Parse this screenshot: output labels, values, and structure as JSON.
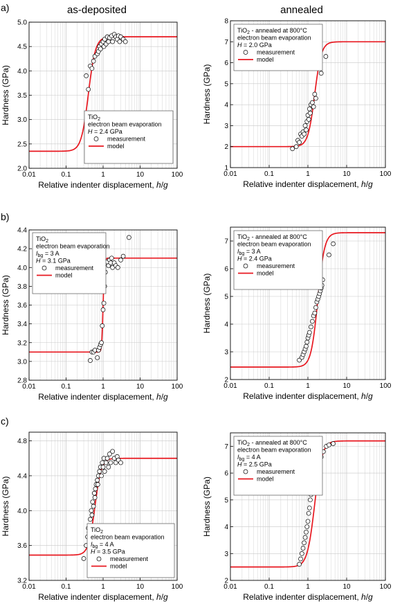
{
  "column_titles": [
    "as-deposited",
    "annealed"
  ],
  "row_labels": [
    "a)",
    "b)",
    "c)"
  ],
  "legend_labels": {
    "measurement": "measurement",
    "model": "model"
  },
  "colors": {
    "model": "#e8171f",
    "measurement": "#000000",
    "grid": "#c8c8c8"
  },
  "chart_data": [
    {
      "id": "a-as-deposited",
      "type": "scatter",
      "xlabel": "Relative indenter displacement, h/g",
      "ylabel": "Hardness (GPa)",
      "xscale": "log",
      "xlim": [
        0.01,
        100
      ],
      "ylim": [
        2.0,
        5.0
      ],
      "xticks": [
        "0.01",
        "0.1",
        "1",
        "10",
        "100"
      ],
      "yticks": [
        "2.0",
        "2.5",
        "3.0",
        "3.5",
        "4.0",
        "4.5",
        "5.0"
      ],
      "grid": true,
      "legend_position": "bottom-right",
      "legend_text": [
        "TiO2",
        "electron beam evaporation",
        "H = 2.4 GPa"
      ],
      "model": {
        "low": 2.35,
        "high": 4.7,
        "x0": 0.4,
        "k": 4.5
      },
      "series": [
        {
          "name": "measurement",
          "x": [
            0.35,
            0.4,
            0.45,
            0.5,
            0.55,
            0.6,
            0.7,
            0.75,
            0.8,
            0.85,
            0.9,
            1.0,
            1.05,
            1.1,
            1.2,
            1.3,
            1.4,
            1.5,
            1.7,
            1.8,
            2.0,
            2.2,
            2.4,
            2.6,
            2.8,
            3.0,
            3.5,
            4.0
          ],
          "y": [
            3.9,
            3.62,
            4.1,
            4.05,
            4.2,
            4.3,
            4.35,
            4.4,
            4.5,
            4.45,
            4.55,
            4.6,
            4.5,
            4.65,
            4.55,
            4.7,
            4.6,
            4.68,
            4.72,
            4.6,
            4.75,
            4.7,
            4.65,
            4.72,
            4.6,
            4.7,
            4.65,
            4.6
          ]
        }
      ]
    },
    {
      "id": "a-annealed",
      "type": "scatter",
      "xlabel": "Relative indenter displacement, h/g",
      "ylabel": "Hardness (GPa)",
      "xscale": "log",
      "xlim": [
        0.01,
        100
      ],
      "ylim": [
        1,
        8
      ],
      "xticks": [
        "0.01",
        "0.1",
        "1",
        "10",
        "100"
      ],
      "yticks": [
        "1",
        "2",
        "3",
        "4",
        "5",
        "6",
        "7",
        "8"
      ],
      "grid": true,
      "legend_position": "top-left",
      "legend_text": [
        "TiO2 - annealed at 800°C",
        "electron beam evaporation",
        "H = 2.0 GPa"
      ],
      "model": {
        "low": 2.0,
        "high": 7.0,
        "x0": 1.5,
        "k": 5.0
      },
      "series": [
        {
          "name": "measurement",
          "x": [
            0.4,
            0.5,
            0.55,
            0.6,
            0.65,
            0.7,
            0.75,
            0.8,
            0.85,
            0.9,
            0.95,
            1.0,
            1.05,
            1.1,
            1.15,
            1.2,
            1.3,
            1.4,
            1.5,
            1.6,
            2.2,
            2.9
          ],
          "y": [
            1.9,
            2.0,
            2.3,
            2.2,
            2.6,
            2.5,
            2.7,
            2.6,
            3.0,
            2.8,
            3.2,
            3.5,
            3.3,
            3.8,
            3.6,
            4.0,
            4.1,
            3.9,
            4.5,
            4.3,
            5.5,
            6.3
          ]
        }
      ]
    },
    {
      "id": "b-as-deposited",
      "type": "scatter",
      "xlabel": "Relative indenter displacement, h/g",
      "ylabel": "Hardness (GPa)",
      "xscale": "log",
      "xlim": [
        0.01,
        100
      ],
      "ylim": [
        2.8,
        4.4
      ],
      "xticks": [
        "0.01",
        "0.1",
        "1",
        "10",
        "100"
      ],
      "yticks": [
        "2.8",
        "3.0",
        "3.2",
        "3.4",
        "3.6",
        "3.8",
        "4.0",
        "4.2",
        "4.4"
      ],
      "grid": true,
      "legend_position": "top-left",
      "legend_text": [
        "TiO2",
        "electron beam evaporation",
        "Ibg = 3 A",
        "H = 3.1 GPa"
      ],
      "model": {
        "low": 3.1,
        "high": 4.1,
        "x0": 1.0,
        "k": 25
      },
      "series": [
        {
          "name": "measurement",
          "x": [
            0.45,
            0.5,
            0.55,
            0.6,
            0.7,
            0.75,
            0.8,
            0.85,
            0.9,
            0.95,
            1.0,
            1.05,
            1.1,
            1.15,
            1.2,
            1.3,
            1.4,
            1.5,
            1.6,
            1.7,
            1.8,
            2.0,
            2.2,
            2.5,
            3.0,
            3.5,
            5.0
          ],
          "y": [
            3.01,
            3.1,
            3.1,
            3.12,
            3.04,
            3.12,
            3.15,
            3.18,
            3.2,
            3.38,
            3.55,
            3.62,
            3.8,
            3.95,
            4.05,
            4.06,
            4.02,
            4.08,
            4.05,
            4.1,
            4.0,
            4.05,
            4.02,
            4.0,
            4.08,
            4.12,
            4.32
          ]
        }
      ]
    },
    {
      "id": "b-annealed",
      "type": "scatter",
      "xlabel": "Relative indenter displacement, h/g",
      "ylabel": "Hardness (GPa)",
      "xscale": "log",
      "xlim": [
        0.01,
        100
      ],
      "ylim": [
        2,
        7.5
      ],
      "xticks": [
        "0.01",
        "0.1",
        "1",
        "10",
        "100"
      ],
      "yticks": [
        "2",
        "3",
        "4",
        "5",
        "6",
        "7"
      ],
      "grid": true,
      "legend_position": "top-left",
      "legend_text": [
        "TiO2 - annealed at 800°C",
        "electron beam evaporation",
        "Ibg = 3 A",
        "H = 2.4 GPa"
      ],
      "model": {
        "low": 2.45,
        "high": 7.3,
        "x0": 1.8,
        "k": 5.0
      },
      "series": [
        {
          "name": "measurement",
          "x": [
            0.6,
            0.7,
            0.75,
            0.8,
            0.85,
            0.9,
            0.95,
            1.0,
            1.05,
            1.1,
            1.2,
            1.3,
            1.4,
            1.5,
            1.6,
            1.7,
            1.8,
            1.9,
            2.0,
            2.1,
            2.2,
            2.3,
            2.4,
            3.5,
            4.5
          ],
          "y": [
            2.7,
            2.8,
            2.9,
            3.0,
            3.1,
            3.2,
            3.35,
            3.5,
            3.6,
            3.7,
            3.9,
            4.1,
            4.3,
            4.4,
            4.6,
            4.8,
            4.9,
            5.0,
            5.1,
            5.2,
            5.3,
            5.4,
            5.6,
            6.5,
            6.9
          ]
        }
      ]
    },
    {
      "id": "c-as-deposited",
      "type": "scatter",
      "xlabel": "Relative indenter displacement, h/g",
      "ylabel": "Hardness (GPa)",
      "xscale": "log",
      "xlim": [
        0.01,
        100
      ],
      "ylim": [
        3.2,
        4.9
      ],
      "xticks": [
        "0.01",
        "0.1",
        "1",
        "10",
        "100"
      ],
      "yticks": [
        "3.2",
        "3.6",
        "4.0",
        "4.4",
        "4.8"
      ],
      "grid": true,
      "legend_position": "bottom-right",
      "legend_text": [
        "TiO2",
        "electron beam evaporation",
        "Ibg = 4 A",
        "H = 3.5 GPa"
      ],
      "model": {
        "low": 3.49,
        "high": 4.6,
        "x0": 0.6,
        "k": 5.0
      },
      "series": [
        {
          "name": "measurement",
          "x": [
            0.3,
            0.35,
            0.38,
            0.4,
            0.42,
            0.45,
            0.48,
            0.5,
            0.52,
            0.55,
            0.58,
            0.6,
            0.62,
            0.65,
            0.7,
            0.72,
            0.75,
            0.8,
            0.85,
            0.9,
            0.95,
            1.0,
            1.05,
            1.1,
            1.2,
            1.3,
            1.4,
            1.5,
            1.6,
            1.8,
            2.0,
            2.2,
            2.4,
            2.6,
            3.0
          ],
          "y": [
            3.45,
            3.6,
            3.7,
            3.8,
            3.75,
            3.9,
            4.0,
            3.95,
            4.1,
            4.05,
            4.2,
            4.15,
            4.25,
            4.3,
            4.35,
            4.3,
            4.4,
            4.45,
            4.5,
            4.4,
            4.55,
            4.5,
            4.6,
            4.45,
            4.55,
            4.6,
            4.5,
            4.65,
            4.55,
            4.68,
            4.6,
            4.55,
            4.62,
            4.58,
            4.55
          ]
        }
      ]
    },
    {
      "id": "c-annealed",
      "type": "scatter",
      "xlabel": "Relative indenter displacement, h/g",
      "ylabel": "Hardness (GPa)",
      "xscale": "log",
      "xlim": [
        0.01,
        100
      ],
      "ylim": [
        2,
        7.5
      ],
      "xticks": [
        "0.01",
        "0.1",
        "1",
        "10",
        "100"
      ],
      "yticks": [
        "2",
        "3",
        "4",
        "5",
        "6",
        "7"
      ],
      "grid": true,
      "legend_position": "top-left",
      "legend_text": [
        "TiO2 - annealed at 800°C",
        "electron beam evaporation",
        "Ibg = 4 A",
        "H = 2.5 GPa"
      ],
      "model": {
        "low": 2.5,
        "high": 7.2,
        "x0": 1.5,
        "k": 4.5
      },
      "series": [
        {
          "name": "measurement",
          "x": [
            0.6,
            0.65,
            0.7,
            0.75,
            0.8,
            0.85,
            0.9,
            0.95,
            1.0,
            1.05,
            1.1,
            1.15,
            1.2,
            1.3,
            1.4,
            1.5,
            1.6,
            1.7,
            1.8,
            1.9,
            2.0,
            2.2,
            2.5,
            3.0,
            3.5,
            4.5
          ],
          "y": [
            2.6,
            2.8,
            3.0,
            3.2,
            3.4,
            3.6,
            3.8,
            4.0,
            4.2,
            4.5,
            4.7,
            5.0,
            5.2,
            5.4,
            5.6,
            5.8,
            6.0,
            6.1,
            6.2,
            6.3,
            6.5,
            6.6,
            6.8,
            7.0,
            7.05,
            7.1
          ]
        }
      ]
    }
  ]
}
